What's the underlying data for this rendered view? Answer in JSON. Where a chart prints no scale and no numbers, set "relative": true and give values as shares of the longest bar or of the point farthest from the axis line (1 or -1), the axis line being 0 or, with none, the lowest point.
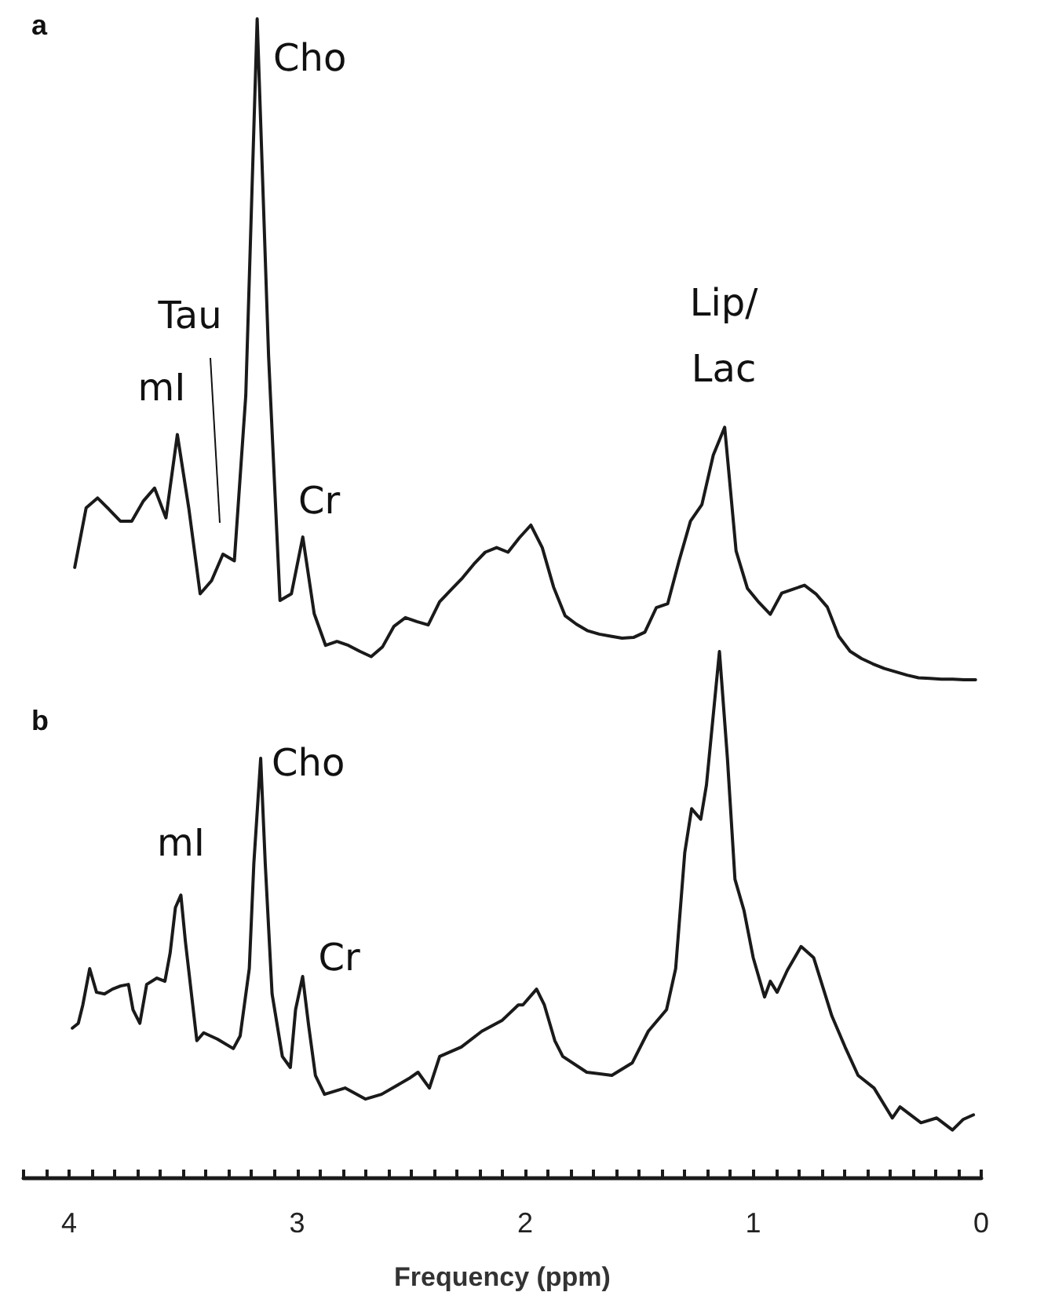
{
  "chart_data": [
    {
      "type": "line",
      "title": "a",
      "relative": true,
      "tick_labels": false,
      "categories": [
        null,
        null,
        null,
        null,
        null,
        null,
        null,
        null,
        null,
        null,
        null,
        null,
        null,
        null,
        null,
        null,
        null,
        null,
        null,
        null,
        null,
        null,
        null,
        null,
        null,
        null,
        null,
        null,
        null,
        null,
        null,
        null,
        null,
        null,
        null,
        null,
        null,
        null,
        null,
        null,
        null,
        null,
        null,
        null,
        null,
        null,
        null,
        null,
        null,
        null,
        null,
        null,
        null,
        null,
        null,
        null,
        null,
        null,
        null,
        null,
        null,
        null,
        null,
        null,
        null,
        null,
        null,
        null,
        null,
        null,
        null,
        null,
        null,
        null,
        null,
        null,
        null,
        null,
        null,
        null
      ],
      "series": [
        {
          "color": "#1a1a1a",
          "values": [
            0.17,
            0.26,
            0.275,
            0.258,
            0.24,
            0.24,
            0.27,
            0.29,
            0.245,
            0.371,
            0.26,
            0.13,
            0.15,
            0.19,
            0.18,
            0.43,
            1,
            0.49,
            0.12,
            0.13,
            0.216,
            0.1,
            0.052,
            0.058,
            0.052,
            0.043,
            0.035,
            0.05,
            0.081,
            0.094,
            0.088,
            0.083,
            0.118,
            0.136,
            0.154,
            0.175,
            0.193,
            0.2,
            0.193,
            0.215,
            0.234,
            0.2,
            0.14,
            0.097,
            0.084,
            0.074,
            0.069,
            0.066,
            0.063,
            0.064,
            0.072,
            0.109,
            0.115,
            0.18,
            0.24,
            0.265,
            0.34,
            0.382,
            0.195,
            0.138,
            0.117,
            0.099,
            0.131,
            0.137,
            0.143,
            0.13,
            0.11,
            0.066,
            0.043,
            0.032,
            0.024,
            0.017,
            0.012,
            0.007,
            0.003,
            0.002,
            0.001,
            0.001,
            0,
            0
          ]
        }
      ],
      "annotations": [
        "mI",
        "Tau",
        "Cho",
        "Cr",
        "Lip/\nLac"
      ]
    },
    {
      "type": "line",
      "title": "b",
      "relative": true,
      "xlim": [
        4.2,
        0
      ],
      "tick_labels": "x",
      "xlabel": "Frequency (ppm)",
      "xticks": [
        {
          "value": 4.2,
          "label": null
        },
        {
          "value": 4.1,
          "label": null
        },
        4,
        {
          "value": 3.9,
          "label": null
        },
        {
          "value": 3.8,
          "label": null
        },
        {
          "value": 3.7,
          "label": null
        },
        {
          "value": 3.6,
          "label": null
        },
        {
          "value": 3.5,
          "label": null
        },
        {
          "value": 3.4,
          "label": null
        },
        {
          "value": 3.3,
          "label": null
        },
        {
          "value": 3.2,
          "label": null
        },
        {
          "value": 3.1,
          "label": null
        },
        3,
        {
          "value": 2.9,
          "label": null
        },
        {
          "value": 2.8,
          "label": null
        },
        {
          "value": 2.7,
          "label": null
        },
        {
          "value": 2.6,
          "label": null
        },
        {
          "value": 2.5,
          "label": null
        },
        {
          "value": 2.4,
          "label": null
        },
        {
          "value": 2.3,
          "label": null
        },
        {
          "value": 2.2,
          "label": null
        },
        {
          "value": 2.1,
          "label": null
        },
        2,
        {
          "value": 1.9,
          "label": null
        },
        {
          "value": 1.8,
          "label": null
        },
        {
          "value": 1.7,
          "label": null
        },
        {
          "value": 1.6,
          "label": null
        },
        {
          "value": 1.5,
          "label": null
        },
        {
          "value": 1.4,
          "label": null
        },
        {
          "value": 1.3,
          "label": null
        },
        {
          "value": 1.2,
          "label": null
        },
        {
          "value": 1.1,
          "label": null
        },
        1,
        {
          "value": 0.9,
          "label": null
        },
        {
          "value": 0.8,
          "label": null
        },
        {
          "value": 0.7,
          "label": null
        },
        {
          "value": 0.6,
          "label": null
        },
        {
          "value": 0.5,
          "label": null
        },
        {
          "value": 0.4,
          "label": null
        },
        {
          "value": 0.3,
          "label": null
        },
        {
          "value": 0.2,
          "label": null
        },
        {
          "value": 0.1,
          "label": null
        },
        0
      ],
      "x": [
        3.986,
        3.96,
        3.94,
        3.91,
        3.88,
        3.845,
        3.81,
        3.775,
        3.74,
        3.72,
        3.69,
        3.66,
        3.615,
        3.58,
        3.557,
        3.534,
        3.51,
        3.49,
        3.44,
        3.41,
        3.35,
        3.28,
        3.25,
        3.21,
        3.19,
        3.16,
        3.14,
        3.11,
        3.065,
        3.03,
        3.007,
        2.976,
        2.95,
        2.92,
        2.88,
        2.79,
        2.7,
        2.63,
        2.51,
        2.47,
        2.42,
        2.375,
        2.28,
        2.19,
        2.1,
        2.03,
        2.01,
        1.95,
        1.916,
        1.87,
        1.835,
        1.73,
        1.62,
        1.53,
        1.46,
        1.38,
        1.34,
        1.3,
        1.27,
        1.23,
        1.205,
        1.148,
        1.113,
        1.08,
        1.04,
        1.0,
        0.95,
        0.925,
        0.895,
        0.85,
        0.79,
        0.735,
        0.655,
        0.597,
        0.54,
        0.47,
        0.39,
        0.356,
        0.264,
        0.195,
        0.126,
        0.08,
        0.034
      ],
      "series": [
        {
          "color": "#1a1a1a",
          "values": [
            0.284,
            0.293,
            0.328,
            0.397,
            0.352,
            0.349,
            0.358,
            0.364,
            0.367,
            0.319,
            0.293,
            0.367,
            0.379,
            0.373,
            0.427,
            0.513,
            0.537,
            0.448,
            0.26,
            0.275,
            0.263,
            0.245,
            0.269,
            0.397,
            0.597,
            0.797,
            0.597,
            0.349,
            0.23,
            0.209,
            0.319,
            0.382,
            0.29,
            0.194,
            0.158,
            0.17,
            0.149,
            0.158,
            0.188,
            0.2,
            0.17,
            0.23,
            0.248,
            0.278,
            0.299,
            0.328,
            0.328,
            0.358,
            0.328,
            0.26,
            0.23,
            0.2,
            0.194,
            0.218,
            0.278,
            0.319,
            0.397,
            0.618,
            0.701,
            0.681,
            0.746,
            1,
            0.797,
            0.567,
            0.507,
            0.418,
            0.343,
            0.373,
            0.352,
            0.394,
            0.439,
            0.418,
            0.307,
            0.248,
            0.194,
            0.17,
            0.113,
            0.134,
            0.104,
            0.113,
            0.09,
            0.11,
            0.119
          ]
        }
      ],
      "annotations": [
        {
          "text": "mI",
          "x": 3.51,
          "y": 0.537
        },
        {
          "text": "Cho",
          "x": 3.16,
          "y": 0.797
        },
        {
          "text": "Cr",
          "x": 2.976,
          "y": 0.382
        }
      ]
    }
  ]
}
